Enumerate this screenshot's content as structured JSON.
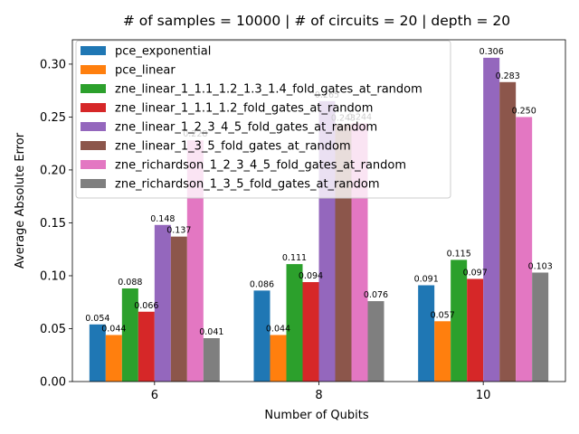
{
  "chart_data": {
    "type": "bar",
    "title": "# of samples = 10000 | # of circuits = 20 | depth = 20",
    "xlabel": "Number of Qubits",
    "ylabel": "Average Absolute Error",
    "categories": [
      "6",
      "8",
      "10"
    ],
    "ylim": [
      0,
      0.323
    ],
    "yticks": [
      "0.00",
      "0.05",
      "0.10",
      "0.15",
      "0.20",
      "0.25",
      "0.30"
    ],
    "legend_position": "upper-left",
    "series": [
      {
        "name": "pce_exponential",
        "color": "#1f77b4",
        "values": [
          0.054,
          0.086,
          0.091
        ],
        "labels": [
          "0.054",
          "0.086",
          "0.091"
        ]
      },
      {
        "name": "pce_linear",
        "color": "#ff7f0e",
        "values": [
          0.044,
          0.044,
          0.057
        ],
        "labels": [
          "0.044",
          "0.044",
          "0.057"
        ]
      },
      {
        "name": "zne_linear_1_1.1_1.2_1.3_1.4_fold_gates_at_random",
        "color": "#2ca02c",
        "values": [
          0.088,
          0.111,
          0.115
        ],
        "labels": [
          "0.088",
          "0.111",
          "0.115"
        ]
      },
      {
        "name": "zne_linear_1_1.1_1.2_fold_gates_at_random",
        "color": "#d62728",
        "values": [
          0.066,
          0.094,
          0.097
        ],
        "labels": [
          "0.066",
          "0.094",
          "0.097"
        ]
      },
      {
        "name": "zne_linear_1_2_3_4_5_fold_gates_at_random",
        "color": "#9467bd",
        "values": [
          0.148,
          0.265,
          0.306
        ],
        "labels": [
          "0.148",
          "0.265",
          "0.306"
        ]
      },
      {
        "name": "zne_linear_1_3_5_fold_gates_at_random",
        "color": "#8c564b",
        "values": [
          0.137,
          0.243,
          0.283
        ],
        "labels": [
          "0.137",
          "0.243",
          "0.283"
        ]
      },
      {
        "name": "zne_richardson_1_2_3_4_5_fold_gates_at_random",
        "color": "#e377c2",
        "values": [
          0.228,
          0.244,
          0.25
        ],
        "labels": [
          "0.228",
          "0.244",
          "0.250"
        ]
      },
      {
        "name": "zne_richardson_1_3_5_fold_gates_at_random",
        "color": "#7f7f7f",
        "values": [
          0.041,
          0.076,
          0.103
        ],
        "labels": [
          "0.041",
          "0.076",
          "0.103"
        ]
      }
    ]
  }
}
